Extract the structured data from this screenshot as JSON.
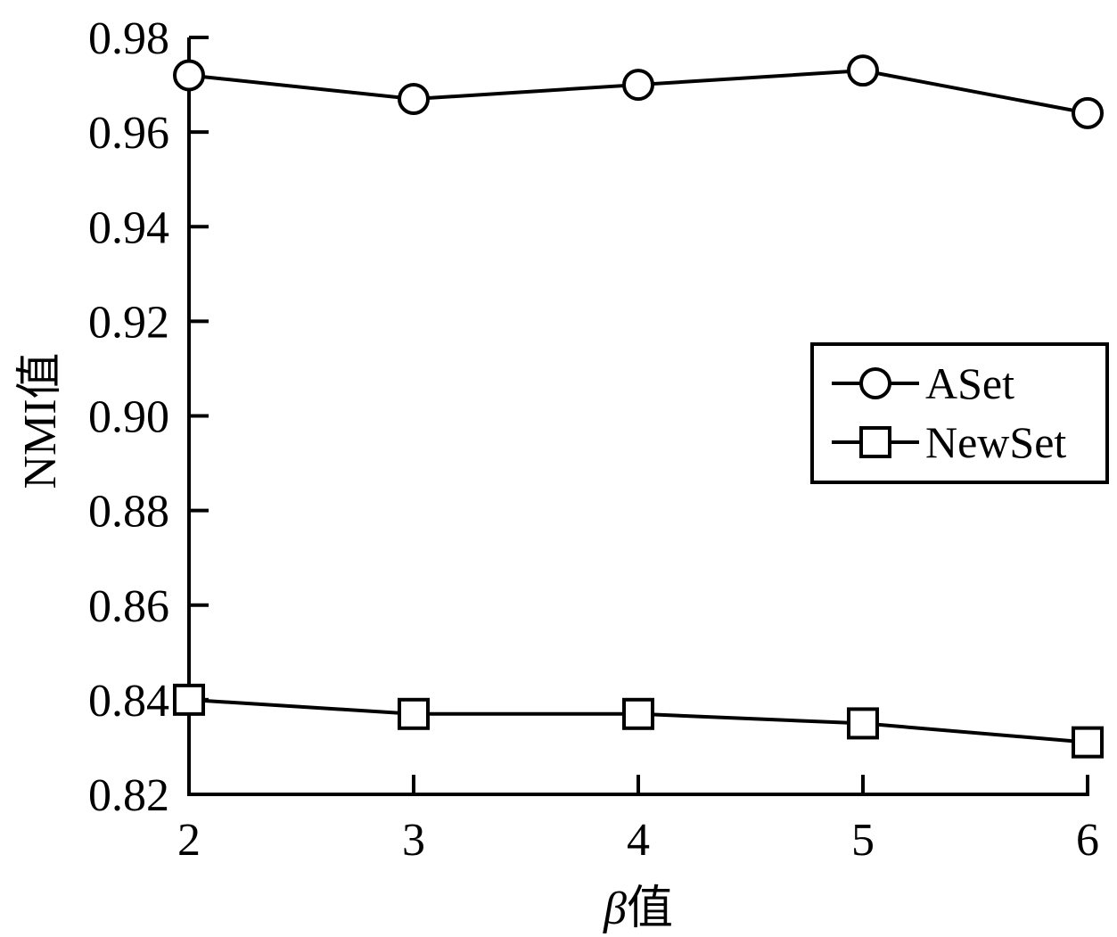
{
  "chart_data": {
    "type": "line",
    "x": [
      2,
      3,
      4,
      5,
      6
    ],
    "series": [
      {
        "name": "ASet",
        "marker": "circle",
        "values": [
          0.972,
          0.967,
          0.97,
          0.973,
          0.964
        ]
      },
      {
        "name": "NewSet",
        "marker": "square",
        "values": [
          0.84,
          0.837,
          0.837,
          0.835,
          0.831
        ]
      }
    ],
    "xlabel_symbol": "β",
    "xlabel_suffix": "值",
    "ylabel": "NMI值",
    "xlim": [
      2,
      6
    ],
    "ylim": [
      0.82,
      0.98
    ],
    "xticks": [
      "2",
      "3",
      "4",
      "5",
      "6"
    ],
    "yticks": [
      "0.82",
      "0.84",
      "0.86",
      "0.88",
      "0.90",
      "0.92",
      "0.94",
      "0.96",
      "0.98"
    ],
    "legend_position": "right",
    "grid": false,
    "color": "#000000"
  }
}
